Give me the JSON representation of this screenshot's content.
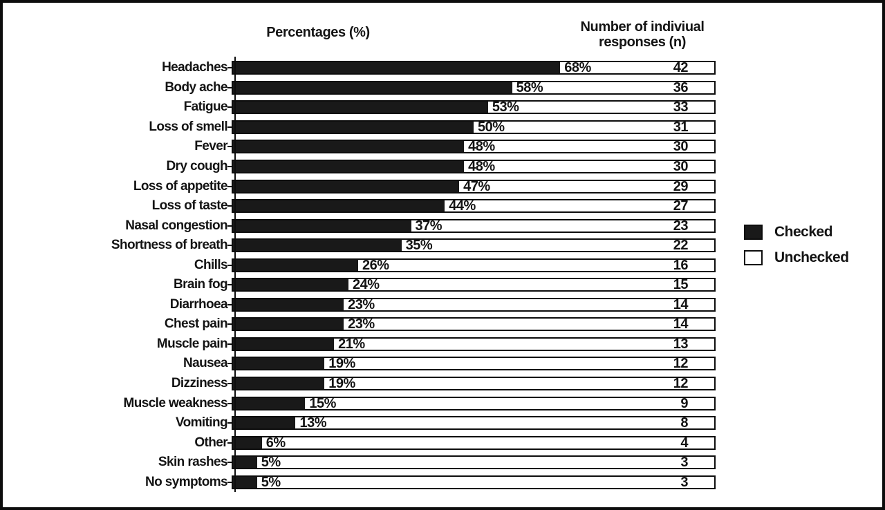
{
  "chart_data": {
    "type": "bar",
    "orientation": "horizontal",
    "stacked": true,
    "grid": false,
    "xlim": [
      0,
      100
    ],
    "title_left": "Percentages (%)",
    "title_right": "Number of indiviual responses (n)",
    "legend": {
      "position": "right",
      "entries": [
        {
          "label": "Checked",
          "color": "#191919"
        },
        {
          "label": "Unchecked",
          "color": "#ffffff"
        }
      ]
    },
    "categories": [
      "Headaches",
      "Body ache",
      "Fatigue",
      "Loss of smell",
      "Fever",
      "Dry cough",
      "Loss of appetite",
      "Loss of taste",
      "Nasal congestion",
      "Shortness of breath",
      "Chills",
      "Brain fog",
      "Diarrhoea",
      "Chest pain",
      "Muscle pain",
      "Nausea",
      "Dizziness",
      "Muscle weakness",
      "Vomiting",
      "Other",
      "Skin rashes",
      "No symptoms"
    ],
    "series": [
      {
        "name": "Checked",
        "unit": "%",
        "values": [
          68,
          58,
          53,
          50,
          48,
          48,
          47,
          44,
          37,
          35,
          26,
          24,
          23,
          23,
          21,
          19,
          19,
          15,
          13,
          6,
          5,
          5
        ]
      },
      {
        "name": "Unchecked",
        "unit": "%",
        "values": [
          32,
          42,
          47,
          50,
          52,
          52,
          53,
          56,
          63,
          65,
          74,
          76,
          77,
          77,
          79,
          81,
          81,
          85,
          87,
          94,
          95,
          95
        ]
      }
    ],
    "percent_labels": [
      "68%",
      "58%",
      "53%",
      "50%",
      "48%",
      "48%",
      "47%",
      "44%",
      "37%",
      "35%",
      "26%",
      "24%",
      "23%",
      "23%",
      "21%",
      "19%",
      "19%",
      "15%",
      "13%",
      "6%",
      "5%",
      "5%"
    ],
    "counts": [
      42,
      36,
      33,
      31,
      30,
      30,
      29,
      27,
      23,
      22,
      16,
      15,
      14,
      14,
      13,
      12,
      12,
      9,
      8,
      4,
      3,
      3
    ]
  },
  "colors": {
    "bar_fill": "#191919",
    "bar_background": "#ffffff",
    "border": "#0d0d0d",
    "text": "#141414"
  }
}
